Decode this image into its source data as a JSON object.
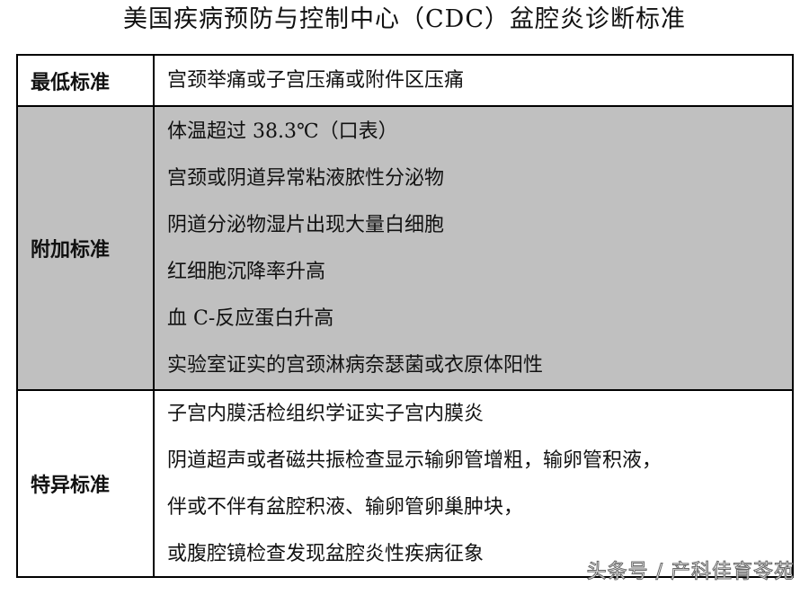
{
  "title": "美国疾病预防与控制中心（CDC）盆腔炎诊断标准",
  "rows": [
    {
      "label": "最低标准",
      "shaded": false,
      "lines": [
        "宫颈举痛或子宫压痛或附件区压痛"
      ]
    },
    {
      "label": "附加标准",
      "shaded": true,
      "lines": [
        "体温超过 38.3℃（口表）",
        "宫颈或阴道异常粘液脓性分泌物",
        "阴道分泌物湿片出现大量白细胞",
        "红细胞沉降率升高",
        "血 C-反应蛋白升高",
        "实验室证实的宫颈淋病奈瑟菌或衣原体阳性"
      ]
    },
    {
      "label": "特异标准",
      "shaded": false,
      "lines": [
        "子宫内膜活检组织学证实子宫内膜炎",
        "阴道超声或者磁共振检查显示输卵管增粗，输卵管积液，",
        "伴或不伴有盆腔积液、输卵管卵巢肿块，",
        "或腹腔镜检查发现盆腔炎性疾病征象"
      ]
    }
  ],
  "watermark": "头条号 / 产科佳育苓苑",
  "colors": {
    "shaded_row": "#c0c0c0",
    "border": "#000000"
  }
}
